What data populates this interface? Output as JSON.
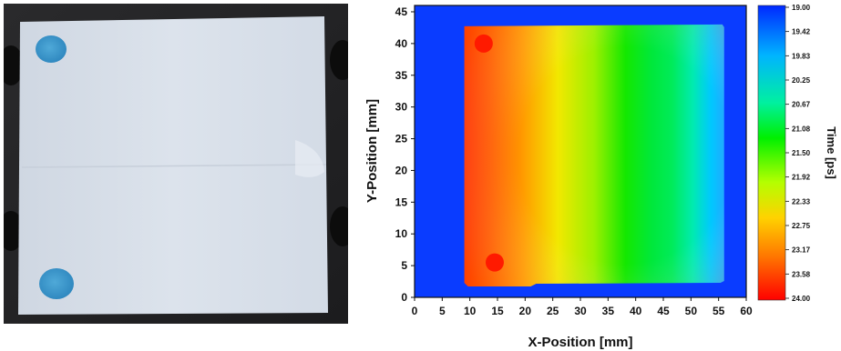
{
  "photo": {
    "alt": "sample photograph"
  },
  "chart_data": {
    "type": "heatmap",
    "xlabel": "X-Position [mm]",
    "ylabel": "Y-Position [mm]",
    "colorbar_label": "Time [ps]",
    "xlim": [
      0,
      60
    ],
    "ylim": [
      0,
      46
    ],
    "x_ticks": [
      0,
      5,
      10,
      15,
      20,
      25,
      30,
      35,
      40,
      45,
      50,
      55,
      60
    ],
    "y_ticks": [
      0,
      5,
      10,
      15,
      20,
      25,
      30,
      35,
      40,
      45
    ],
    "colorbar_ticks": [
      "19.00",
      "19.42",
      "19.83",
      "20.25",
      "20.67",
      "21.08",
      "21.50",
      "21.92",
      "22.33",
      "22.75",
      "23.17",
      "23.58",
      "24.00"
    ],
    "colorbar_range": [
      19.0,
      24.0
    ],
    "background_value": 19.0,
    "sample_region": {
      "x": [
        9,
        56
      ],
      "y": [
        2,
        43
      ]
    },
    "time_profile_along_x": [
      {
        "x": 9,
        "t": 23.9
      },
      {
        "x": 15,
        "t": 23.3
      },
      {
        "x": 20,
        "t": 22.9
      },
      {
        "x": 25,
        "t": 22.3
      },
      {
        "x": 30,
        "t": 21.7
      },
      {
        "x": 35,
        "t": 21.3
      },
      {
        "x": 40,
        "t": 21.3
      },
      {
        "x": 45,
        "t": 21.4
      },
      {
        "x": 50,
        "t": 21.0
      },
      {
        "x": 56,
        "t": 20.2
      }
    ],
    "spots": [
      {
        "x": 12.5,
        "y": 40,
        "t": 24.0
      },
      {
        "x": 14.5,
        "y": 5.5,
        "t": 24.0
      }
    ],
    "colorscale": [
      "#0030ff",
      "#00c8ff",
      "#00ff60",
      "#c0ff00",
      "#ffcc00",
      "#ff6a00",
      "#ff0000"
    ]
  }
}
